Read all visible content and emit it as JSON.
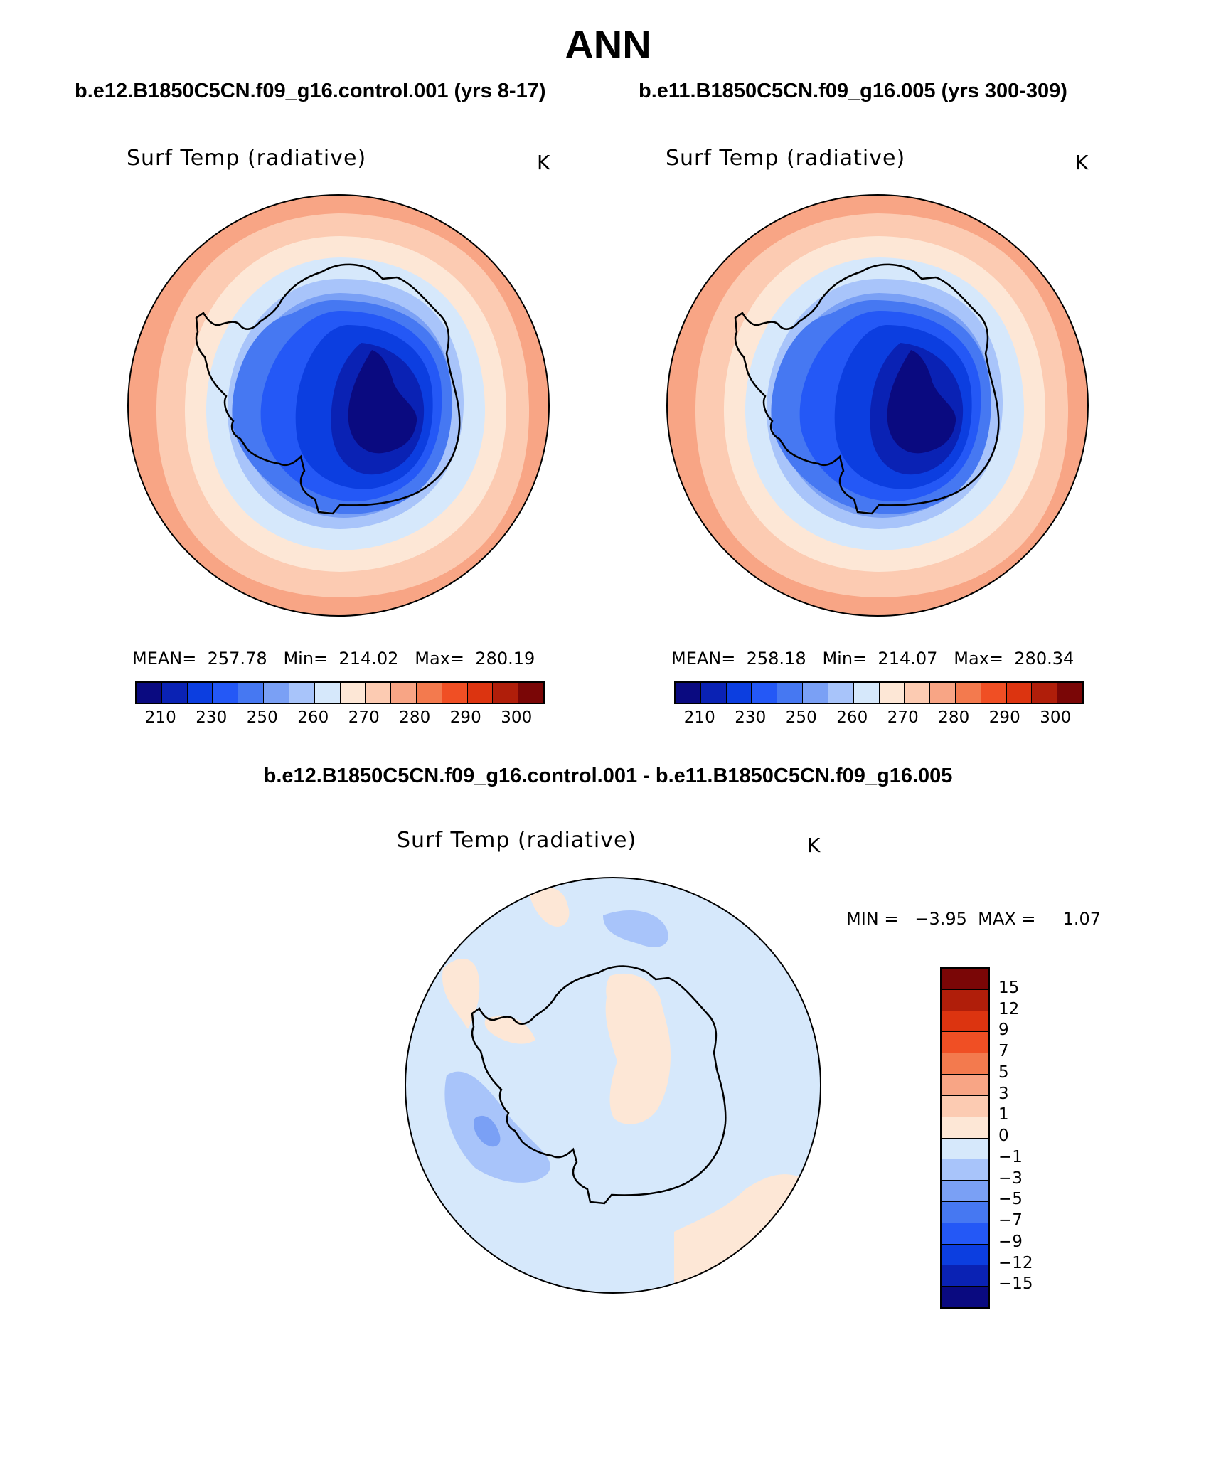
{
  "page": {
    "title": "ANN",
    "case1": "b.e12.B1850C5CN.f09_g16.control.001 (yrs 8-17)",
    "case2": "b.e11.B1850C5CN.f09_g16.005 (yrs 300-309)",
    "diff_title": "b.e12.B1850C5CN.f09_g16.control.001 - b.e11.B1850C5CN.f09_g16.005"
  },
  "panels": [
    {
      "variable": "Surf Temp (radiative)",
      "unit": "K",
      "stats": "MEAN=  257.78   Min=  214.02   Max=  280.19"
    },
    {
      "variable": "Surf Temp (radiative)",
      "unit": "K",
      "stats": "MEAN=  258.18   Min=  214.07   Max=  280.34"
    }
  ],
  "abs_colorbar": {
    "labels": [
      "210",
      "230",
      "250",
      "260",
      "270",
      "280",
      "290",
      "300"
    ],
    "colors": [
      "#0a0a80",
      "#0a22b4",
      "#0c3ee0",
      "#2458f6",
      "#4678f2",
      "#7aa0f5",
      "#a8c4fa",
      "#d6e8fb",
      "#fde7d6",
      "#fccbb2",
      "#f8a585",
      "#f37a4e",
      "#f04f24",
      "#dc3410",
      "#b01e0a",
      "#7a0606"
    ]
  },
  "diff_panel": {
    "variable": "Surf Temp (radiative)",
    "unit": "K",
    "stats": "MIN =   −3.95  MAX =     1.07"
  },
  "diff_colorbar": {
    "labels": [
      "15",
      "12",
      "9",
      "7",
      "5",
      "3",
      "1",
      "0",
      "−1",
      "−3",
      "−5",
      "−7",
      "−9",
      "−12",
      "−15"
    ],
    "colors": [
      "#7a0606",
      "#b01e0a",
      "#dc3410",
      "#f04f24",
      "#f37a4e",
      "#f8a585",
      "#fccbb2",
      "#fde7d6",
      "#d6e8fb",
      "#a8c4fa",
      "#7aa0f5",
      "#4678f2",
      "#2458f6",
      "#0c3ee0",
      "#0a22b4",
      "#0a0a80"
    ]
  }
}
